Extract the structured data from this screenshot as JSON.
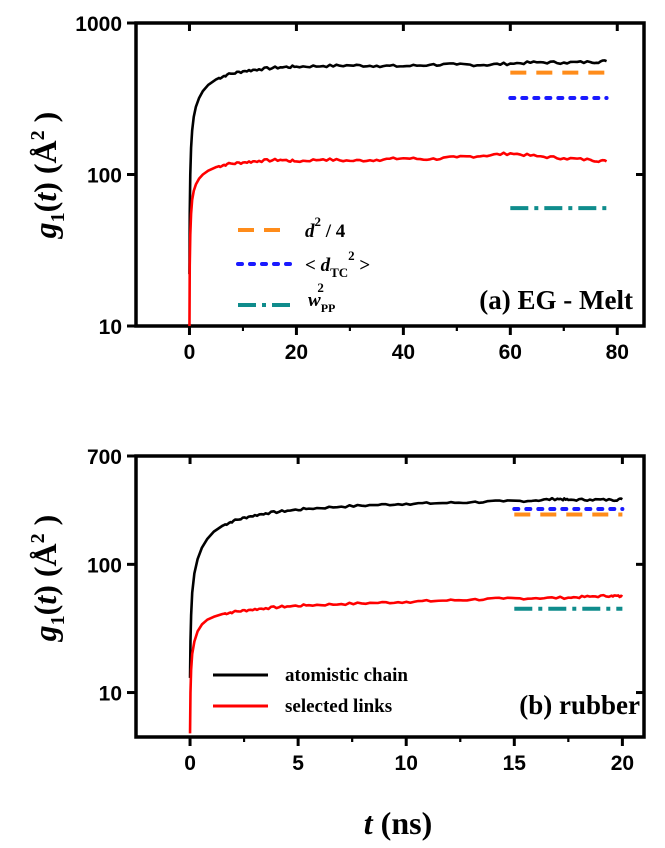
{
  "chart_data": [
    {
      "panel": "a",
      "type": "line",
      "label": "(a) EG - Melt",
      "ylabel_g": "g",
      "ylabel_sub": "1",
      "ylabel_t": "t",
      "ylabel_unit": "Å",
      "ylabel_exp": "2",
      "yscale": "log",
      "ylim": [
        10,
        1000
      ],
      "xlim": [
        -10,
        85
      ],
      "xticks": [
        0,
        20,
        40,
        60,
        80
      ],
      "xtick_labels": [
        "0",
        "20",
        "40",
        "60",
        "80"
      ],
      "yticks": [
        10,
        100,
        1000
      ],
      "ytick_labels": [
        "10",
        "100",
        "1000"
      ],
      "series": [
        {
          "name": "atomistic chain",
          "color": "#000000",
          "x": [
            0,
            0.05,
            0.15,
            0.3,
            0.5,
            0.8,
            1.2,
            1.8,
            2.5,
            3.5,
            5,
            7,
            10,
            13,
            17,
            20,
            25,
            30,
            35,
            40,
            45,
            50,
            55,
            60,
            65,
            70,
            75,
            78
          ],
          "y": [
            22,
            55,
            100,
            150,
            195,
            240,
            280,
            320,
            355,
            390,
            425,
            455,
            480,
            495,
            510,
            515,
            520,
            525,
            522,
            518,
            530,
            532,
            528,
            540,
            550,
            548,
            552,
            560
          ]
        },
        {
          "name": "selected links",
          "color": "#ff0000",
          "x": [
            0,
            0.05,
            0.15,
            0.3,
            0.5,
            0.8,
            1.2,
            1.8,
            2.5,
            3.5,
            5,
            7,
            10,
            13,
            17,
            20,
            25,
            30,
            35,
            40,
            45,
            50,
            55,
            60,
            65,
            70,
            75,
            78
          ],
          "y": [
            10,
            25,
            40,
            55,
            68,
            78,
            86,
            94,
            100,
            106,
            112,
            117,
            120,
            123,
            125,
            122,
            126,
            123,
            125,
            128,
            126,
            130,
            133,
            138,
            132,
            128,
            125,
            122
          ]
        }
      ],
      "reference_lines": [
        {
          "name": "d^2 / 4",
          "color": "#ff8c1a",
          "dash": "dash",
          "x": [
            60,
            78
          ],
          "y": 470
        },
        {
          "name": "<d_TC^2>",
          "color": "#1a1aff",
          "dash": "dot",
          "x": [
            60,
            78
          ],
          "y": 320
        },
        {
          "name": "w_PP^2",
          "color": "#0f8c8c",
          "dash": "dashdot",
          "x": [
            60,
            78
          ],
          "y": 60
        }
      ],
      "legend": [
        {
          "key": "d2",
          "main": "d",
          "sup": "2",
          "rest": " / 4",
          "color": "#ff8c1a",
          "dash": "dash"
        },
        {
          "key": "dtc",
          "pre": "< ",
          "main": "d",
          "sub": "TC",
          "sup": "2",
          "rest": " >",
          "color": "#1a1aff",
          "dash": "dot"
        },
        {
          "key": "wpp",
          "main": "w",
          "sub": "PP",
          "sup": "2",
          "color": "#0f8c8c",
          "dash": "dashdot"
        }
      ]
    },
    {
      "panel": "b",
      "type": "line",
      "label": "(b) rubber",
      "ylabel_g": "g",
      "ylabel_sub": "1",
      "ylabel_t": "t",
      "ylabel_unit": "Å",
      "ylabel_exp": "2",
      "xlabel_t": "t",
      "xlabel_unit": " (ns)",
      "yscale": "log",
      "ylim": [
        4.5,
        700
      ],
      "xlim": [
        -2.5,
        21
      ],
      "xticks": [
        0,
        5,
        10,
        15,
        20
      ],
      "xtick_labels": [
        "0",
        "5",
        "10",
        "15",
        "20"
      ],
      "yticks": [
        10,
        100,
        700
      ],
      "ytick_labels": [
        "10",
        "100",
        "700"
      ],
      "series": [
        {
          "name": "atomistic chain",
          "color": "#000000",
          "x": [
            0,
            0.02,
            0.05,
            0.1,
            0.2,
            0.35,
            0.55,
            0.8,
            1.1,
            1.5,
            2,
            2.7,
            3.5,
            4.5,
            5.5,
            7,
            8.5,
            10,
            11.5,
            13,
            14.5,
            16,
            17,
            17.5,
            18.5,
            19.5,
            20
          ],
          "y": [
            13,
            25,
            40,
            60,
            85,
            110,
            135,
            158,
            180,
            200,
            218,
            235,
            250,
            262,
            272,
            282,
            290,
            297,
            300,
            305,
            310,
            315,
            325,
            318,
            320,
            318,
            322
          ]
        },
        {
          "name": "selected links",
          "color": "#ff0000",
          "x": [
            0,
            0.02,
            0.05,
            0.1,
            0.2,
            0.35,
            0.55,
            0.8,
            1.1,
            1.5,
            2,
            2.7,
            3.5,
            4.5,
            5.5,
            7,
            8.5,
            10,
            11.5,
            13,
            14.5,
            16,
            17.5,
            18.5,
            19.5,
            20
          ],
          "y": [
            4.8,
            10,
            15,
            20,
            25,
            30,
            34,
            37,
            39,
            41,
            42.5,
            44,
            45.5,
            47,
            48,
            49,
            50,
            51,
            52,
            53,
            54,
            54.5,
            55,
            56,
            57,
            56
          ]
        }
      ],
      "reference_lines": [
        {
          "name": "<d_TC^2>",
          "color": "#1a1aff",
          "dash": "dot",
          "x": [
            15,
            20
          ],
          "y": 270
        },
        {
          "name": "d^2 / 4",
          "color": "#ff8c1a",
          "dash": "dash",
          "x": [
            15,
            20
          ],
          "y": 245
        },
        {
          "name": "w_PP^2",
          "color": "#0f8c8c",
          "dash": "dashdot",
          "x": [
            15,
            20
          ],
          "y": 45
        }
      ],
      "legend": [
        {
          "key": "atomistic",
          "text": "atomistic chain",
          "color": "#000000"
        },
        {
          "key": "selected",
          "text": "selected links",
          "color": "#ff0000"
        }
      ]
    }
  ]
}
